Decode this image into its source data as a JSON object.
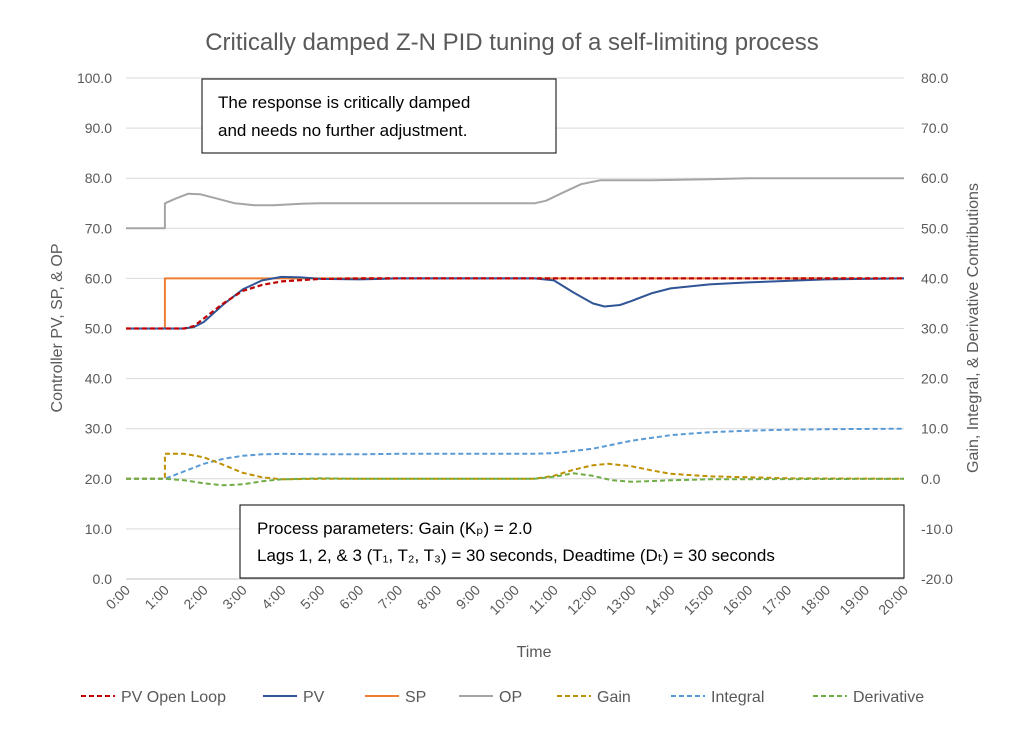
{
  "chart_data": {
    "type": "line",
    "title": "Critically damped Z-N PID tuning of a self-limiting process",
    "xlabel": "Time",
    "ylabel_left": "Controller PV, SP, & OP",
    "ylabel_right": "Gain, Integral, & Derivative Contributions",
    "x_ticks": [
      "0:00",
      "1:00",
      "2:00",
      "3:00",
      "4:00",
      "5:00",
      "6:00",
      "7:00",
      "8:00",
      "9:00",
      "10:00",
      "11:00",
      "12:00",
      "13:00",
      "14:00",
      "15:00",
      "16:00",
      "17:00",
      "18:00",
      "19:00",
      "20:00"
    ],
    "xlim": [
      0,
      20
    ],
    "ylim_left": [
      0,
      100
    ],
    "ylim_right": [
      -20,
      80
    ],
    "y_ticks_left": [
      "0.0",
      "10.0",
      "20.0",
      "30.0",
      "40.0",
      "50.0",
      "60.0",
      "70.0",
      "80.0",
      "90.0",
      "100.0"
    ],
    "y_ticks_right": [
      "-20.0",
      "-10.0",
      "0.0",
      "10.0",
      "20.0",
      "30.0",
      "40.0",
      "50.0",
      "60.0",
      "70.0",
      "80.0"
    ],
    "grid": "horizontal",
    "legend_position": "bottom",
    "annotations": [
      {
        "lines": [
          "The response is critically damped",
          "and needs no further adjustment."
        ]
      },
      {
        "lines": [
          "Process parameters:  Gain (Kₚ) = 2.0",
          "Lags 1, 2, & 3 (T₁, T₂, T₃) = 30 seconds, Deadtime (Dₜ) = 30 seconds"
        ]
      }
    ],
    "series": [
      {
        "name": "PV Open Loop",
        "axis": "left",
        "color": "#C00000",
        "dash": "dashed",
        "points": [
          [
            0,
            50
          ],
          [
            1,
            50
          ],
          [
            1.5,
            50
          ],
          [
            1.75,
            50.5
          ],
          [
            2,
            52
          ],
          [
            2.5,
            55
          ],
          [
            3,
            57.5
          ],
          [
            3.5,
            58.7
          ],
          [
            4,
            59.4
          ],
          [
            5,
            59.9
          ],
          [
            6,
            60
          ],
          [
            20,
            60
          ]
        ]
      },
      {
        "name": "PV",
        "axis": "left",
        "color": "#2F5597",
        "dash": "solid",
        "points": [
          [
            0,
            50
          ],
          [
            1,
            50
          ],
          [
            1.5,
            50
          ],
          [
            1.75,
            50.3
          ],
          [
            2,
            51.3
          ],
          [
            2.5,
            54.8
          ],
          [
            3,
            57.8
          ],
          [
            3.5,
            59.6
          ],
          [
            4,
            60.3
          ],
          [
            4.5,
            60.2
          ],
          [
            5,
            59.9
          ],
          [
            6,
            59.8
          ],
          [
            7,
            60
          ],
          [
            10.5,
            60
          ],
          [
            11,
            59.6
          ],
          [
            11.5,
            57.2
          ],
          [
            12,
            55
          ],
          [
            12.3,
            54.4
          ],
          [
            12.7,
            54.7
          ],
          [
            13,
            55.5
          ],
          [
            13.5,
            57
          ],
          [
            14,
            58
          ],
          [
            15,
            58.8
          ],
          [
            16,
            59.2
          ],
          [
            17,
            59.5
          ],
          [
            18,
            59.8
          ],
          [
            19,
            59.9
          ],
          [
            20,
            60
          ]
        ]
      },
      {
        "name": "SP",
        "axis": "left",
        "color": "#ED7D31",
        "dash": "solid",
        "points": [
          [
            0,
            50
          ],
          [
            1,
            50
          ],
          [
            1,
            60
          ],
          [
            20,
            60
          ]
        ]
      },
      {
        "name": "OP",
        "axis": "left",
        "color": "#A5A5A5",
        "dash": "solid",
        "points": [
          [
            0,
            70
          ],
          [
            1,
            70
          ],
          [
            1,
            75
          ],
          [
            1.3,
            76
          ],
          [
            1.6,
            76.9
          ],
          [
            1.9,
            76.8
          ],
          [
            2.3,
            76
          ],
          [
            2.8,
            75
          ],
          [
            3.3,
            74.6
          ],
          [
            3.8,
            74.6
          ],
          [
            4.5,
            74.9
          ],
          [
            5,
            75
          ],
          [
            6,
            75
          ],
          [
            10.5,
            75
          ],
          [
            10.8,
            75.5
          ],
          [
            11.2,
            77
          ],
          [
            11.7,
            78.8
          ],
          [
            12.2,
            79.6
          ],
          [
            12.7,
            79.6
          ],
          [
            13.5,
            79.6
          ],
          [
            15,
            79.8
          ],
          [
            16,
            80
          ],
          [
            20,
            80
          ]
        ]
      },
      {
        "name": "Gain",
        "axis": "right",
        "color": "#BF9000",
        "dash": "dashed",
        "points": [
          [
            0,
            0
          ],
          [
            1,
            0
          ],
          [
            1,
            5
          ],
          [
            1.5,
            5
          ],
          [
            2,
            4.3
          ],
          [
            2.5,
            2.8
          ],
          [
            3,
            1.2
          ],
          [
            3.5,
            0.3
          ],
          [
            4,
            -0.1
          ],
          [
            5,
            0
          ],
          [
            10.5,
            0
          ],
          [
            11,
            0.6
          ],
          [
            11.5,
            1.8
          ],
          [
            12,
            2.7
          ],
          [
            12.4,
            3
          ],
          [
            13,
            2.5
          ],
          [
            13.5,
            1.7
          ],
          [
            14,
            1
          ],
          [
            15,
            0.5
          ],
          [
            16,
            0.3
          ],
          [
            17,
            0.1
          ],
          [
            20,
            0
          ]
        ]
      },
      {
        "name": "Integral",
        "axis": "right",
        "color": "#5B9BD5",
        "dash": "dashed",
        "points": [
          [
            0,
            0
          ],
          [
            1,
            0
          ],
          [
            1.5,
            1.5
          ],
          [
            2,
            3
          ],
          [
            2.5,
            4
          ],
          [
            3,
            4.6
          ],
          [
            3.5,
            4.9
          ],
          [
            4,
            5
          ],
          [
            5,
            4.9
          ],
          [
            6,
            4.9
          ],
          [
            7,
            5
          ],
          [
            10.5,
            5
          ],
          [
            11,
            5.1
          ],
          [
            12,
            6
          ],
          [
            13,
            7.6
          ],
          [
            14,
            8.7
          ],
          [
            15,
            9.3
          ],
          [
            16,
            9.6
          ],
          [
            17,
            9.8
          ],
          [
            18,
            9.9
          ],
          [
            20,
            10
          ]
        ]
      },
      {
        "name": "Derivative",
        "axis": "right",
        "color": "#70AD47",
        "dash": "dashed",
        "points": [
          [
            0,
            0
          ],
          [
            1,
            0
          ],
          [
            1.5,
            -0.3
          ],
          [
            2,
            -0.9
          ],
          [
            2.5,
            -1.3
          ],
          [
            3,
            -1.1
          ],
          [
            3.5,
            -0.5
          ],
          [
            4,
            -0.1
          ],
          [
            5,
            0.1
          ],
          [
            6,
            0
          ],
          [
            10.5,
            0
          ],
          [
            11,
            0.4
          ],
          [
            11.5,
            1.1
          ],
          [
            12,
            0.6
          ],
          [
            12.5,
            -0.3
          ],
          [
            13,
            -0.6
          ],
          [
            14,
            -0.3
          ],
          [
            15,
            -0.1
          ],
          [
            20,
            0
          ]
        ]
      }
    ]
  }
}
